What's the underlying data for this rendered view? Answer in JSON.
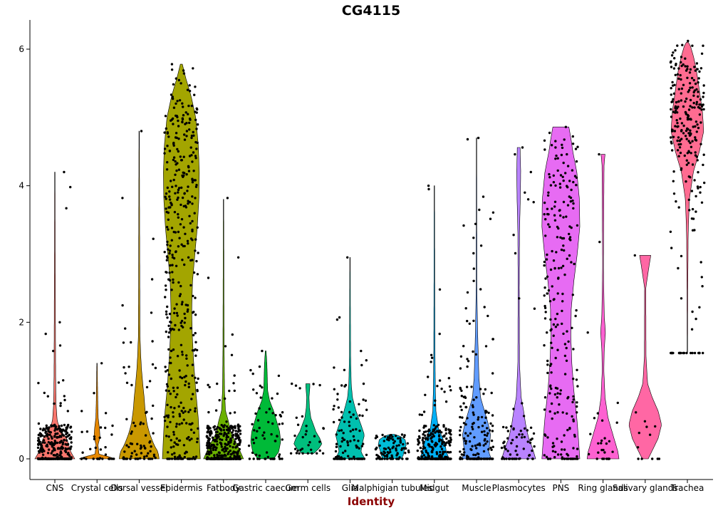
{
  "chart_data": {
    "type": "violin",
    "title": "CG4115",
    "xlabel": "Identity",
    "ylabel": "",
    "ylim": [
      -0.3,
      6.45
    ],
    "yticks": [
      0,
      2,
      4,
      6
    ],
    "grid": false,
    "legend": "none",
    "categories": [
      "CNS",
      "Crystal cells",
      "Dorsal vessel",
      "Epidermis",
      "Fatbody",
      "Gastric caecum",
      "Germ cells",
      "Glia",
      "Malphigian tubules",
      "Midgut",
      "Muscle",
      "Plasmocytes",
      "PNS",
      "Ring glands",
      "Salivary glands",
      "Trachea"
    ],
    "colors": [
      "#F8766D",
      "#E58700",
      "#C99800",
      "#A3A500",
      "#6BB100",
      "#00BA38",
      "#00BF7D",
      "#00C0AF",
      "#00BCD8",
      "#00B0F6",
      "#619CFF",
      "#B983FF",
      "#E76BF3",
      "#FD61D1",
      "#FF67A4",
      "#FF6C91"
    ],
    "violins": [
      {
        "category": "CNS",
        "min": 0,
        "max": 4.2,
        "profile": [
          [
            0,
            1.0
          ],
          [
            0.1,
            0.8
          ],
          [
            0.2,
            0.7
          ],
          [
            0.3,
            0.6
          ],
          [
            0.4,
            0.32
          ],
          [
            0.55,
            0.12
          ],
          [
            0.8,
            0.06
          ],
          [
            1.2,
            0.04
          ],
          [
            2.0,
            0.03
          ],
          [
            3.0,
            0.02
          ],
          [
            4.2,
            0.01
          ]
        ],
        "n_points": 320,
        "dist": "zero_heavy",
        "outliers": [
          4.2,
          3.98,
          3.67,
          2.0,
          1.83,
          1.66,
          1.58,
          1.15
        ]
      },
      {
        "category": "Crystal cells",
        "min": 0,
        "max": 1.4,
        "profile": [
          [
            0,
            0.9
          ],
          [
            0.03,
            0.6
          ],
          [
            0.07,
            0.1
          ],
          [
            0.2,
            0.05
          ],
          [
            0.32,
            0.15
          ],
          [
            0.45,
            0.12
          ],
          [
            0.6,
            0.06
          ],
          [
            0.8,
            0.04
          ],
          [
            1.4,
            0.01
          ]
        ],
        "n_points": 30,
        "dist": "zero_heavy",
        "outliers": [
          1.4,
          0.7,
          0.67,
          0.4
        ]
      },
      {
        "category": "Dorsal vessel",
        "min": 0,
        "max": 4.8,
        "profile": [
          [
            0,
            1.0
          ],
          [
            0.1,
            0.95
          ],
          [
            0.2,
            0.75
          ],
          [
            0.35,
            0.55
          ],
          [
            0.5,
            0.4
          ],
          [
            0.7,
            0.3
          ],
          [
            0.9,
            0.25
          ],
          [
            1.1,
            0.18
          ],
          [
            1.3,
            0.12
          ],
          [
            1.5,
            0.08
          ],
          [
            1.8,
            0.04
          ],
          [
            2.5,
            0.03
          ],
          [
            4.8,
            0.01
          ]
        ],
        "n_points": 70,
        "dist": "spread",
        "outliers": [
          4.8,
          2.63,
          2.14,
          1.34,
          1.33,
          1.05
        ]
      },
      {
        "category": "Epidermis",
        "min": 0,
        "max": 5.78,
        "profile": [
          [
            0,
            0.95
          ],
          [
            0.3,
            0.9
          ],
          [
            0.6,
            0.85
          ],
          [
            1.0,
            0.72
          ],
          [
            1.4,
            0.62
          ],
          [
            1.8,
            0.55
          ],
          [
            2.2,
            0.52
          ],
          [
            2.6,
            0.56
          ],
          [
            3.0,
            0.68
          ],
          [
            3.4,
            0.8
          ],
          [
            3.8,
            0.88
          ],
          [
            4.2,
            0.9
          ],
          [
            4.6,
            0.85
          ],
          [
            5.0,
            0.72
          ],
          [
            5.3,
            0.5
          ],
          [
            5.6,
            0.2
          ],
          [
            5.78,
            0.05
          ]
        ],
        "n_points": 420,
        "dist": "uniform",
        "outliers": [
          5.78,
          5.7,
          5.5,
          5.33,
          3.82,
          2.95
        ]
      },
      {
        "category": "Fatbody",
        "min": 0,
        "max": 3.8,
        "profile": [
          [
            0,
            1.0
          ],
          [
            0.1,
            0.85
          ],
          [
            0.2,
            0.7
          ],
          [
            0.3,
            0.5
          ],
          [
            0.4,
            0.35
          ],
          [
            0.55,
            0.25
          ],
          [
            0.7,
            0.1
          ],
          [
            1.0,
            0.05
          ],
          [
            1.6,
            0.03
          ],
          [
            2.6,
            0.02
          ],
          [
            3.8,
            0.01
          ]
        ],
        "n_points": 380,
        "dist": "zero_heavy",
        "outliers": [
          3.82,
          2.95,
          2.65,
          1.82,
          1.65,
          1.52,
          1.22,
          1.1
        ]
      },
      {
        "category": "Gastric caecum",
        "min": 0,
        "max": 1.58,
        "profile": [
          [
            0,
            0.4
          ],
          [
            0.1,
            0.65
          ],
          [
            0.25,
            0.75
          ],
          [
            0.4,
            0.7
          ],
          [
            0.55,
            0.55
          ],
          [
            0.7,
            0.4
          ],
          [
            0.85,
            0.2
          ],
          [
            1.0,
            0.1
          ],
          [
            1.2,
            0.08
          ],
          [
            1.4,
            0.06
          ],
          [
            1.58,
            0.02
          ]
        ],
        "n_points": 60,
        "dist": "spread",
        "outliers": [
          1.58,
          1.07,
          0.74,
          0.73
        ]
      },
      {
        "category": "Germ cells",
        "min": 0.08,
        "max": 1.1,
        "profile": [
          [
            0.08,
            0.3
          ],
          [
            0.15,
            0.55
          ],
          [
            0.22,
            0.7
          ],
          [
            0.3,
            0.6
          ],
          [
            0.4,
            0.4
          ],
          [
            0.5,
            0.28
          ],
          [
            0.6,
            0.15
          ],
          [
            0.75,
            0.08
          ],
          [
            0.9,
            0.06
          ],
          [
            1.05,
            0.1
          ],
          [
            1.1,
            0.1
          ]
        ],
        "n_points": 30,
        "dist": "spread",
        "outliers": [
          1.1,
          0.45,
          0.2
        ]
      },
      {
        "category": "Glia",
        "min": 0,
        "max": 2.95,
        "profile": [
          [
            0,
            0.75
          ],
          [
            0.1,
            0.55
          ],
          [
            0.2,
            0.6
          ],
          [
            0.35,
            0.72
          ],
          [
            0.5,
            0.55
          ],
          [
            0.7,
            0.3
          ],
          [
            0.9,
            0.12
          ],
          [
            1.1,
            0.06
          ],
          [
            1.5,
            0.03
          ],
          [
            2.2,
            0.02
          ],
          [
            2.95,
            0.01
          ]
        ],
        "n_points": 100,
        "dist": "spread",
        "outliers": [
          2.95,
          1.1,
          1.08,
          1.02,
          0.95
        ]
      },
      {
        "category": "Malphigian tubules",
        "min": 0,
        "max": 0.36,
        "profile": [
          [
            0,
            0.45
          ],
          [
            0.05,
            0.55
          ],
          [
            0.12,
            0.6
          ],
          [
            0.2,
            0.7
          ],
          [
            0.28,
            0.65
          ],
          [
            0.33,
            0.4
          ],
          [
            0.36,
            0.1
          ]
        ],
        "n_points": 90,
        "dist": "spread",
        "outliers": [
          0.32,
          0.3
        ]
      },
      {
        "category": "Midgut",
        "min": 0,
        "max": 4.0,
        "profile": [
          [
            0,
            0.75
          ],
          [
            0.1,
            0.6
          ],
          [
            0.2,
            0.55
          ],
          [
            0.3,
            0.42
          ],
          [
            0.45,
            0.2
          ],
          [
            0.7,
            0.08
          ],
          [
            1.0,
            0.05
          ],
          [
            1.6,
            0.03
          ],
          [
            2.5,
            0.02
          ],
          [
            4.0,
            0.01
          ]
        ],
        "n_points": 260,
        "dist": "zero_heavy",
        "outliers": [
          4.0,
          3.95,
          2.48,
          1.83,
          1.52,
          1.48,
          1.42,
          1.2
        ]
      },
      {
        "category": "Muscle",
        "min": 0,
        "max": 4.7,
        "profile": [
          [
            0,
            0.75
          ],
          [
            0.1,
            0.6
          ],
          [
            0.2,
            0.65
          ],
          [
            0.35,
            0.7
          ],
          [
            0.5,
            0.6
          ],
          [
            0.7,
            0.4
          ],
          [
            0.9,
            0.2
          ],
          [
            1.2,
            0.12
          ],
          [
            1.6,
            0.08
          ],
          [
            1.8,
            0.06
          ],
          [
            2.4,
            0.02
          ],
          [
            4.7,
            0.01
          ]
        ],
        "n_points": 170,
        "dist": "spread",
        "outliers": [
          4.7,
          4.68,
          1.98,
          1.65,
          1.57,
          1.35
        ]
      },
      {
        "category": "Plasmocytes",
        "min": 0,
        "max": 4.56,
        "profile": [
          [
            0,
            0.85
          ],
          [
            0.15,
            0.7
          ],
          [
            0.3,
            0.5
          ],
          [
            0.5,
            0.35
          ],
          [
            0.7,
            0.25
          ],
          [
            0.9,
            0.12
          ],
          [
            1.4,
            0.04
          ],
          [
            2.5,
            0.03
          ],
          [
            3.3,
            0.04
          ],
          [
            3.8,
            0.08
          ],
          [
            4.2,
            0.1
          ],
          [
            4.56,
            0.07
          ]
        ],
        "n_points": 60,
        "dist": "zero_heavy",
        "outliers": [
          4.56,
          4.46,
          4.2,
          3.9,
          3.8,
          3.76,
          3.28,
          3.01,
          2.35,
          2.2
        ]
      },
      {
        "category": "PNS",
        "min": 0,
        "max": 4.86,
        "profile": [
          [
            0,
            0.95
          ],
          [
            0.3,
            0.88
          ],
          [
            0.6,
            0.8
          ],
          [
            1.0,
            0.65
          ],
          [
            1.4,
            0.55
          ],
          [
            1.8,
            0.5
          ],
          [
            2.2,
            0.52
          ],
          [
            2.6,
            0.65
          ],
          [
            3.0,
            0.82
          ],
          [
            3.4,
            0.95
          ],
          [
            3.8,
            0.93
          ],
          [
            4.2,
            0.8
          ],
          [
            4.5,
            0.6
          ],
          [
            4.7,
            0.5
          ],
          [
            4.86,
            0.4
          ]
        ],
        "n_points": 240,
        "dist": "uniform",
        "outliers": [
          4.86,
          4.56,
          4.46,
          1.85
        ]
      },
      {
        "category": "Ring glands",
        "min": 0,
        "max": 4.46,
        "profile": [
          [
            0,
            0.8
          ],
          [
            0.1,
            0.75
          ],
          [
            0.25,
            0.6
          ],
          [
            0.4,
            0.45
          ],
          [
            0.6,
            0.25
          ],
          [
            0.9,
            0.1
          ],
          [
            1.3,
            0.04
          ],
          [
            1.6,
            0.06
          ],
          [
            1.85,
            0.12
          ],
          [
            2.1,
            0.06
          ],
          [
            2.8,
            0.02
          ],
          [
            4.3,
            0.05
          ],
          [
            4.46,
            0.1
          ]
        ],
        "n_points": 24,
        "dist": "spread",
        "outliers": [
          4.46,
          1.85,
          0.82,
          0.53
        ]
      },
      {
        "category": "Salivary glands",
        "min": 0,
        "max": 2.98,
        "profile": [
          [
            0,
            0.15
          ],
          [
            0.15,
            0.4
          ],
          [
            0.3,
            0.65
          ],
          [
            0.5,
            0.82
          ],
          [
            0.7,
            0.65
          ],
          [
            0.9,
            0.35
          ],
          [
            1.1,
            0.12
          ],
          [
            1.5,
            0.04
          ],
          [
            2.5,
            0.03
          ],
          [
            2.8,
            0.18
          ],
          [
            2.98,
            0.28
          ]
        ],
        "n_points": 8,
        "dist": "spread",
        "outliers": [
          2.98,
          0.68,
          0.55,
          0.38,
          0.0
        ]
      },
      {
        "category": "Trachea",
        "min": 1.55,
        "max": 6.1,
        "profile": [
          [
            1.55,
            0.01
          ],
          [
            2.5,
            0.02
          ],
          [
            3.3,
            0.04
          ],
          [
            3.8,
            0.1
          ],
          [
            4.2,
            0.3
          ],
          [
            4.5,
            0.6
          ],
          [
            4.8,
            0.82
          ],
          [
            5.1,
            0.75
          ],
          [
            5.4,
            0.6
          ],
          [
            5.7,
            0.45
          ],
          [
            5.9,
            0.3
          ],
          [
            6.05,
            0.15
          ],
          [
            6.1,
            0.05
          ]
        ],
        "n_points": 240,
        "dist": "uniform",
        "outliers": [
          6.12,
          6.05,
          5.95,
          3.98,
          3.62,
          3.35,
          2.88,
          2.35,
          2.22,
          1.55
        ]
      }
    ]
  }
}
